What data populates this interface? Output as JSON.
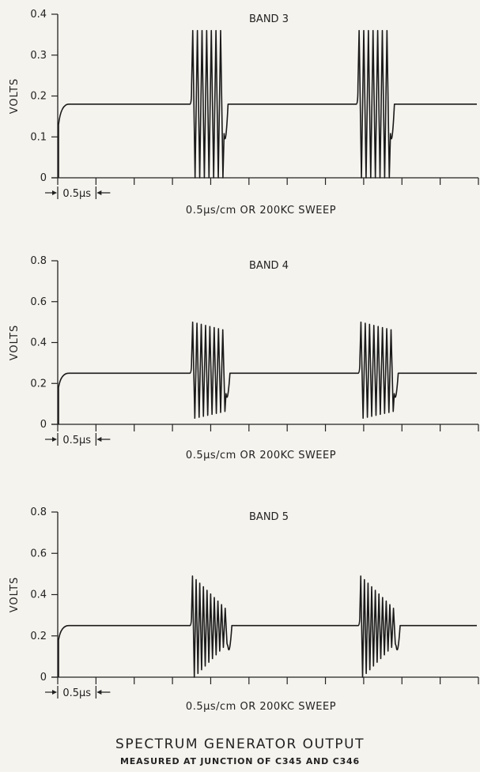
{
  "chart_data": [
    {
      "type": "line",
      "title": "BAND 3",
      "ylabel": "VOLTS",
      "xlabel": "0.5μs/cm OR 200KC SWEEP",
      "scale_marker": "0.5μs",
      "ylim": [
        0,
        0.4
      ],
      "yticks": [
        "0",
        "0.1",
        "0.2",
        "0.3",
        "0.4"
      ],
      "x_unit": "cm",
      "x_divisions": 11,
      "series": [
        {
          "values": [
            {
              "x_start": 0,
              "x_end": 3.5,
              "level": 0.18
            },
            {
              "x_start": 3.5,
              "x_end": 4.35,
              "burst": {
                "cycles": 7,
                "max": 0.36,
                "min": 0.0,
                "decay": 1.0
              }
            },
            {
              "x_start": 4.35,
              "x_end": 7.85,
              "level": 0.18
            },
            {
              "x_start": 7.85,
              "x_end": 8.7,
              "burst": {
                "cycles": 7,
                "max": 0.36,
                "min": 0.0,
                "decay": 1.0
              }
            },
            {
              "x_start": 8.7,
              "x_end": 11.0,
              "level": 0.18
            }
          ]
        }
      ]
    },
    {
      "type": "line",
      "title": "BAND 4",
      "ylabel": "VOLTS",
      "xlabel": "0.5μs/cm OR 200KC SWEEP",
      "scale_marker": "0.5μs",
      "ylim": [
        0,
        0.8
      ],
      "yticks": [
        "0",
        "0.2",
        "0.4",
        "0.6",
        "0.8"
      ],
      "x_unit": "cm",
      "x_divisions": 11,
      "series": [
        {
          "values": [
            {
              "x_start": 0,
              "x_end": 3.5,
              "level": 0.25
            },
            {
              "x_start": 3.5,
              "x_end": 4.4,
              "burst": {
                "cycles": 8,
                "max": 0.5,
                "min": 0.03,
                "decay": 0.85
              }
            },
            {
              "x_start": 4.4,
              "x_end": 7.9,
              "level": 0.25
            },
            {
              "x_start": 7.9,
              "x_end": 8.8,
              "burst": {
                "cycles": 8,
                "max": 0.5,
                "min": 0.03,
                "decay": 0.85
              }
            },
            {
              "x_start": 8.8,
              "x_end": 11.0,
              "level": 0.25
            }
          ]
        }
      ]
    },
    {
      "type": "line",
      "title": "BAND 5",
      "ylabel": "VOLTS",
      "xlabel": "0.5μs/cm OR 200KC SWEEP",
      "scale_marker": "0.5μs",
      "ylim": [
        0,
        0.8
      ],
      "yticks": [
        "0",
        "0.2",
        "0.4",
        "0.6",
        "0.8"
      ],
      "x_unit": "cm",
      "x_divisions": 11,
      "series": [
        {
          "values": [
            {
              "x_start": 0,
              "x_end": 3.5,
              "level": 0.25
            },
            {
              "x_start": 3.5,
              "x_end": 4.45,
              "burst": {
                "cycles": 10,
                "max": 0.49,
                "min": 0.0,
                "decay": 0.35
              }
            },
            {
              "x_start": 4.45,
              "x_end": 7.9,
              "level": 0.25
            },
            {
              "x_start": 7.9,
              "x_end": 8.85,
              "burst": {
                "cycles": 10,
                "max": 0.49,
                "min": 0.0,
                "decay": 0.35
              }
            },
            {
              "x_start": 8.85,
              "x_end": 11.0,
              "level": 0.25
            }
          ]
        }
      ]
    }
  ],
  "caption": {
    "title": "SPECTRUM GENERATOR OUTPUT",
    "subtitle": "MEASURED AT JUNCTION OF C345 AND C346"
  }
}
